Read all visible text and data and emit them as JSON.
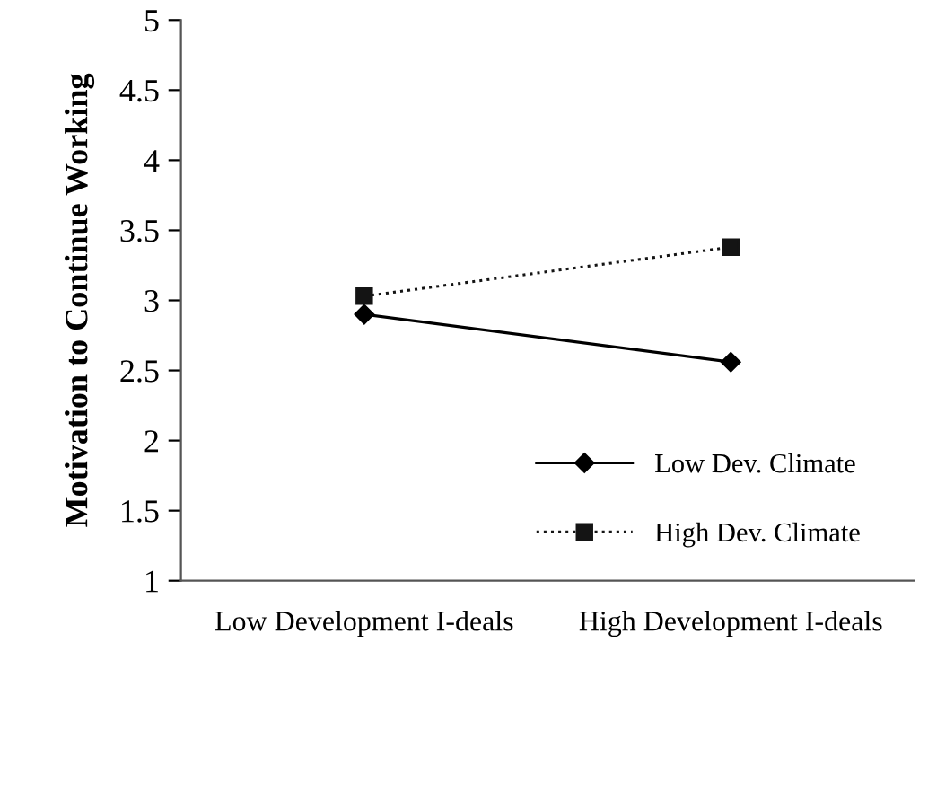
{
  "chart_data": {
    "type": "line",
    "ylabel": "Motivation to Continue Working",
    "categories": [
      "Low Development I-deals",
      "High Development I-deals"
    ],
    "series": [
      {
        "name": "Low Dev. Climate",
        "color": "#000000",
        "values": [
          2.9,
          2.56
        ],
        "marker": "diamond",
        "line_style": "solid"
      },
      {
        "name": "High Dev. Climate",
        "color": "#141414",
        "values": [
          3.03,
          3.38
        ],
        "marker": "square",
        "line_style": "dotted"
      }
    ],
    "ylim": [
      1,
      5
    ],
    "yticks": [
      1,
      1.5,
      2,
      2.5,
      3,
      3.5,
      4,
      4.5,
      5
    ],
    "grid": false,
    "legend": "bottom right"
  }
}
